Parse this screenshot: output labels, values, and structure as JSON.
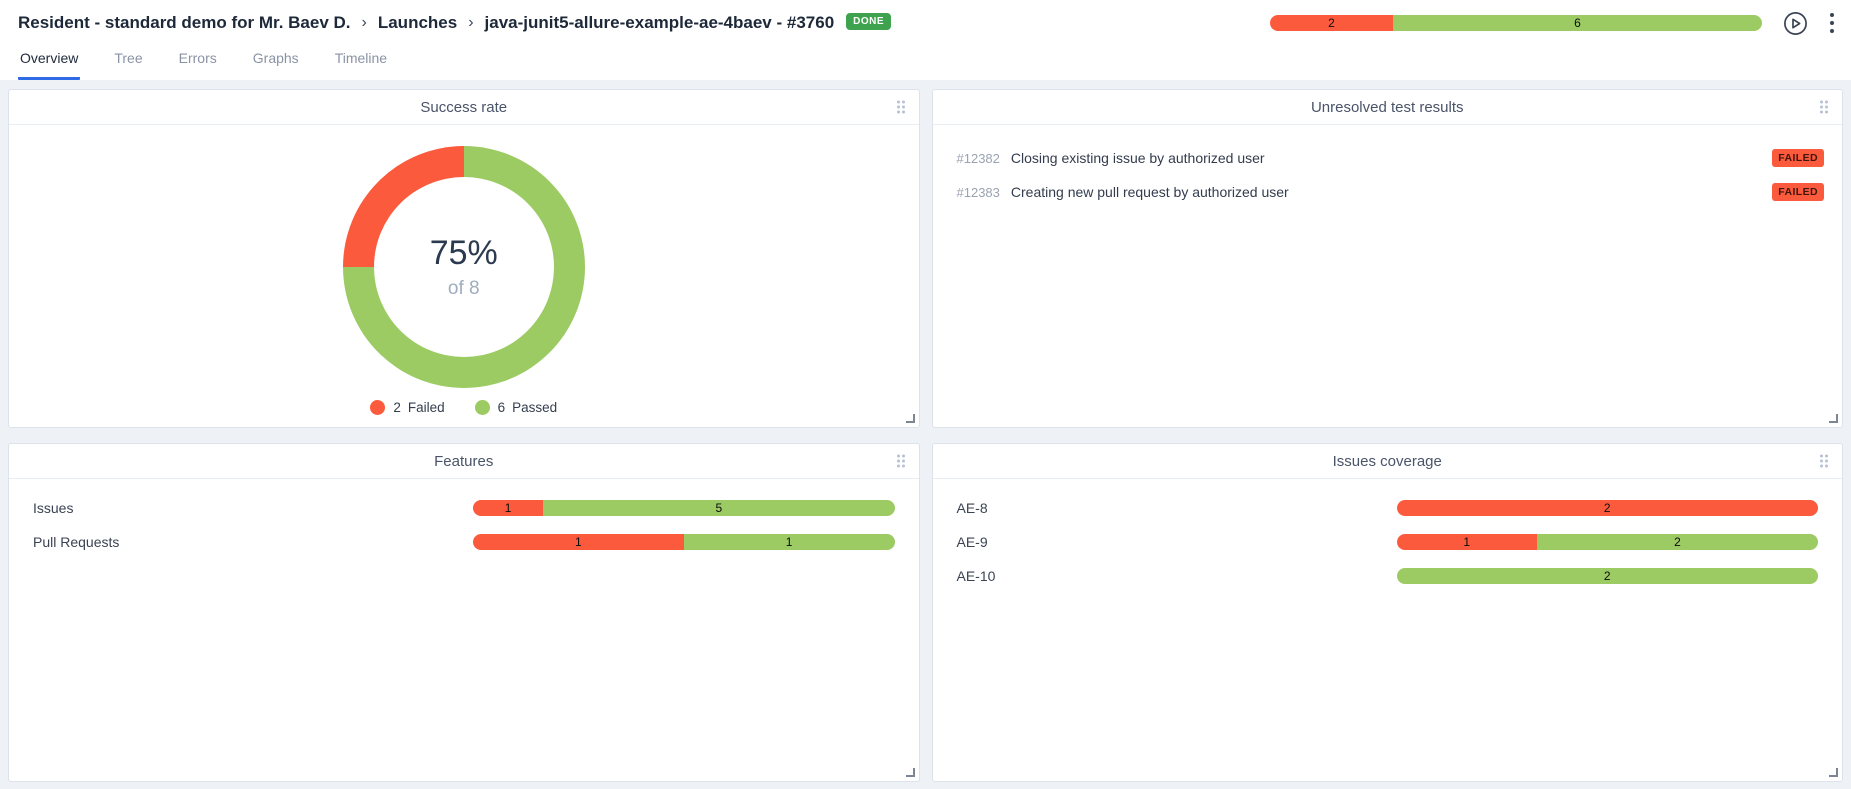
{
  "colors": {
    "failed": "#fb5a3c",
    "passed": "#9bcb62",
    "done_badge": "#3ea24e",
    "accent_blue": "#2e6be5"
  },
  "breadcrumb": {
    "items": [
      "Resident - standard demo for Mr. Baev D.",
      "Launches",
      "java-junit5-allure-example-ae-4baev - #3760"
    ],
    "separator": "›",
    "status_badge": "DONE"
  },
  "header_stats": {
    "segments": [
      {
        "value": 2,
        "label": "2",
        "color_key": "failed",
        "name": "Failed"
      },
      {
        "value": 6,
        "label": "6",
        "color_key": "passed",
        "name": "Passed"
      }
    ]
  },
  "tabs": [
    {
      "label": "Overview",
      "active": true
    },
    {
      "label": "Tree",
      "active": false
    },
    {
      "label": "Errors",
      "active": false
    },
    {
      "label": "Graphs",
      "active": false
    },
    {
      "label": "Timeline",
      "active": false
    }
  ],
  "panels": {
    "success_rate": {
      "title": "Success rate",
      "percent_label": "75%",
      "total_label": "of 8",
      "slices_draw_order": [
        {
          "name": "Passed",
          "value": 6,
          "color_key": "passed"
        },
        {
          "name": "Failed",
          "value": 2,
          "color_key": "failed"
        }
      ],
      "legend": [
        {
          "count": "2",
          "label": "Failed",
          "color_key": "failed"
        },
        {
          "count": "6",
          "label": "Passed",
          "color_key": "passed"
        }
      ]
    },
    "unresolved": {
      "title": "Unresolved test results",
      "rows": [
        {
          "id": "#12382",
          "name": "Closing existing issue by authorized user",
          "status": "FAILED"
        },
        {
          "id": "#12383",
          "name": "Creating new pull request by authorized user",
          "status": "FAILED"
        }
      ]
    },
    "features": {
      "title": "Features",
      "rows": [
        {
          "label": "Issues",
          "segments": [
            {
              "value": 1,
              "color_key": "failed"
            },
            {
              "value": 5,
              "color_key": "passed"
            }
          ]
        },
        {
          "label": "Pull Requests",
          "segments": [
            {
              "value": 1,
              "color_key": "failed"
            },
            {
              "value": 1,
              "color_key": "passed"
            }
          ]
        }
      ]
    },
    "issues_coverage": {
      "title": "Issues coverage",
      "rows": [
        {
          "label": "AE-8",
          "segments": [
            {
              "value": 2,
              "color_key": "failed"
            }
          ]
        },
        {
          "label": "AE-9",
          "segments": [
            {
              "value": 1,
              "color_key": "failed"
            },
            {
              "value": 2,
              "color_key": "passed"
            }
          ]
        },
        {
          "label": "AE-10",
          "segments": [
            {
              "value": 2,
              "color_key": "passed"
            }
          ]
        }
      ]
    }
  },
  "chart_data": [
    {
      "type": "pie",
      "title": "Success rate",
      "labels": [
        "Failed",
        "Passed"
      ],
      "values": [
        2,
        6
      ],
      "center_text": "75%",
      "center_subtext": "of 8",
      "legend_position": "bottom"
    },
    {
      "type": "bar",
      "title": "Features",
      "orientation": "horizontal",
      "stacked": true,
      "categories": [
        "Issues",
        "Pull Requests"
      ],
      "series": [
        {
          "name": "Failed",
          "values": [
            1,
            1
          ]
        },
        {
          "name": "Passed",
          "values": [
            5,
            1
          ]
        }
      ]
    },
    {
      "type": "bar",
      "title": "Issues coverage",
      "orientation": "horizontal",
      "stacked": true,
      "categories": [
        "AE-8",
        "AE-9",
        "AE-10"
      ],
      "series": [
        {
          "name": "Failed",
          "values": [
            2,
            1,
            0
          ]
        },
        {
          "name": "Passed",
          "values": [
            0,
            2,
            2
          ]
        }
      ]
    }
  ]
}
